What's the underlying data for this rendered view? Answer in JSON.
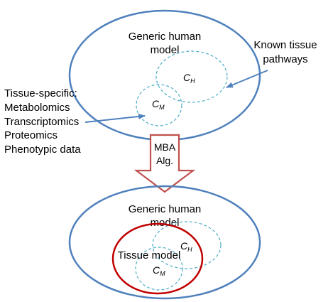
{
  "top_model": {
    "title_line1": "Generic human",
    "title_line2": "model",
    "ch_main": "C",
    "ch_sub": "H",
    "cm_main": "C",
    "cm_sub": "M"
  },
  "known_pathways": {
    "line1": "Known tissue",
    "line2": "pathways"
  },
  "tissue_specific": {
    "heading": "Tissue-specific:",
    "items": [
      "Metabolomics",
      "Transcriptomics",
      "Proteomics",
      "Phenotypic data"
    ]
  },
  "algorithm_arrow": {
    "line1": "MBA",
    "line2": "Alg."
  },
  "bottom_model": {
    "title_line1": "Generic human",
    "title_line2": "model",
    "tissue_label": "Tissue model",
    "ch_main": "C",
    "ch_sub": "H",
    "cm_main": "C",
    "cm_sub": "M"
  },
  "colors": {
    "outer_ellipse": "#4f81bd",
    "dashed_circles": "#4bacc6",
    "arrow_red": "#c0504d",
    "tissue_ellipse": "#c00000"
  }
}
